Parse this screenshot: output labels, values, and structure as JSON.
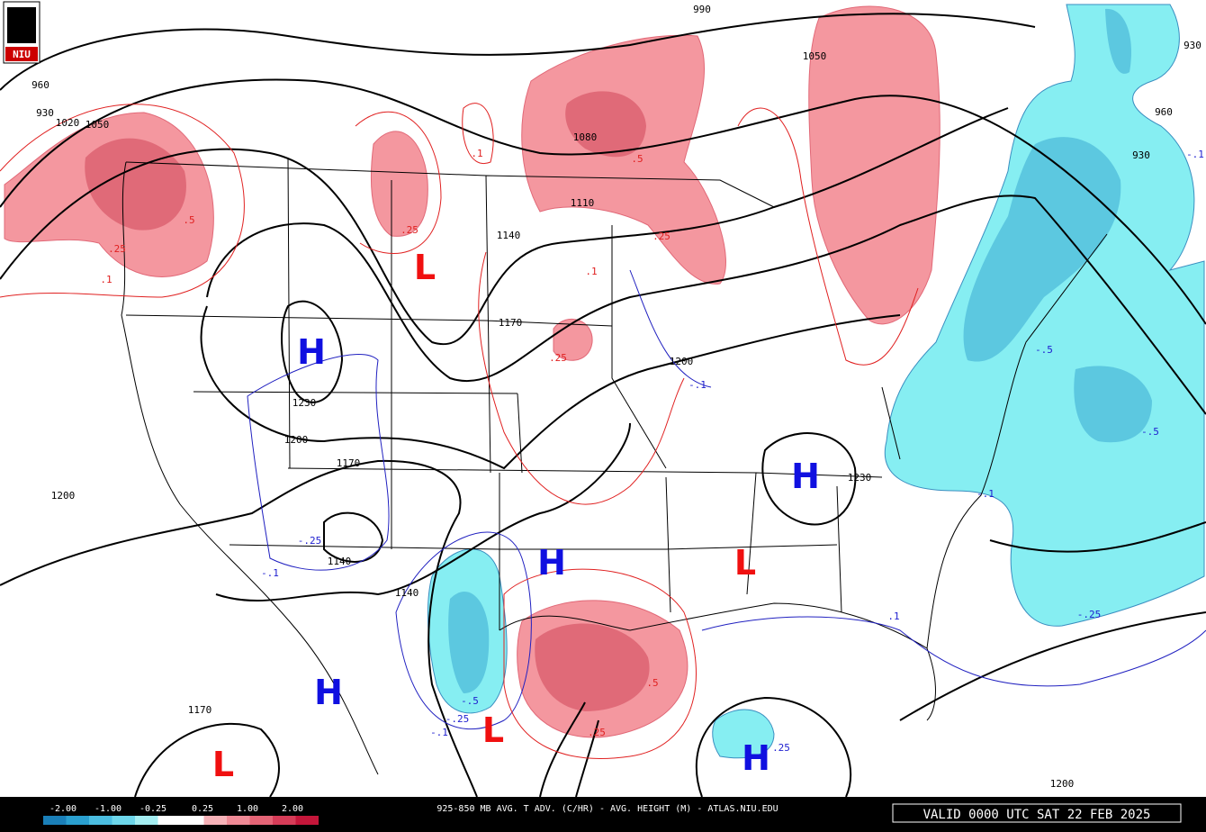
{
  "logo": "NIU",
  "map": {
    "height_labels": [
      "990",
      "930",
      "960",
      "930",
      "1020",
      "1050",
      "1050",
      "960",
      "930",
      "1080",
      "1110",
      "1140",
      "1170",
      "1200",
      "1230",
      "1200",
      "1170",
      "1200",
      "1230",
      "1140",
      "1140",
      "1170",
      "1200"
    ],
    "advection_labels": [
      ".1",
      ".5",
      ".25",
      ".25",
      ".1",
      ".25",
      ".1",
      ".25",
      ".5",
      ".5",
      ".25",
      "-.1",
      "-.5",
      "-.5",
      "-.1",
      "-.25",
      "-.25",
      "-.1",
      "-.5",
      "-.25",
      "-.1",
      ".25",
      ".1",
      "-.1"
    ],
    "centers": [
      "L",
      "H",
      "H",
      "H",
      "L",
      "H",
      "L",
      "L",
      "H"
    ]
  },
  "footer": {
    "legend_labels": [
      "-2.00",
      "-1.00",
      "-0.25",
      "0.25",
      "1.00",
      "2.00"
    ],
    "title": "925-850 MB AVG. T ADV. (C/HR) - AVG. HEIGHT (M) - ATLAS.NIU.EDU",
    "valid": "VALID 0000 UTC SAT 22 FEB 2025"
  }
}
